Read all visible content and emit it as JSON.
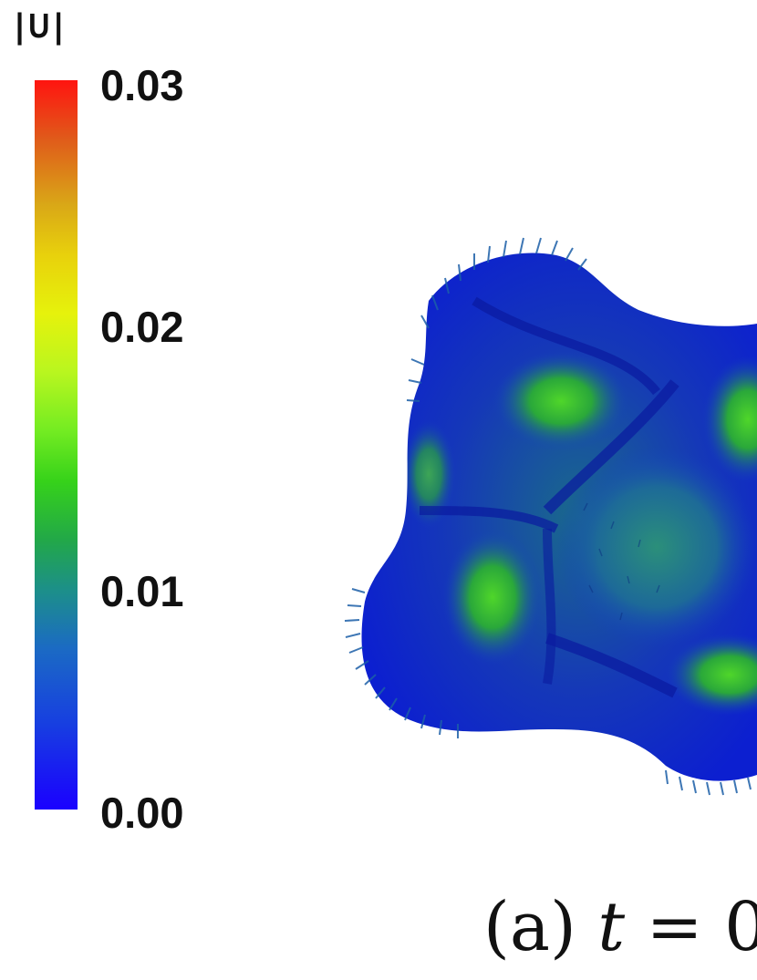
{
  "colorbar": {
    "title": "|U|",
    "ticks": [
      "0.03",
      "0.02",
      "0.01",
      "0.00"
    ],
    "range": [
      0.0,
      0.03
    ],
    "colormap": [
      "#1a00ff",
      "#1b6ac4",
      "#22a848",
      "#36d21a",
      "#b9f61f",
      "#e6f20c",
      "#d9a717",
      "#ff1410"
    ]
  },
  "caption": {
    "label": "(a)",
    "variable": "t",
    "rest": "= 0"
  }
}
